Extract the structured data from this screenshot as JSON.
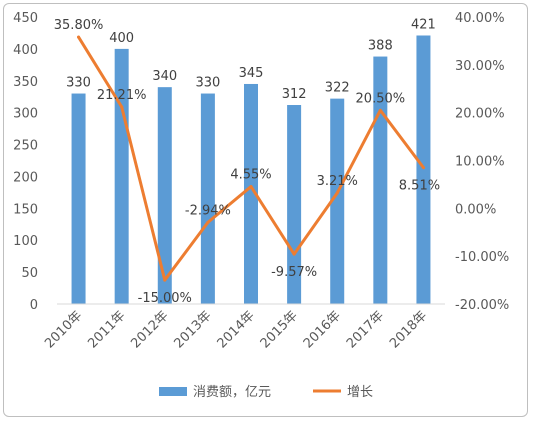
{
  "chart_data": {
    "type": "bar",
    "categories": [
      "2010年",
      "2011年",
      "2012年",
      "2013年",
      "2014年",
      "2015年",
      "2016年",
      "2017年",
      "2018年"
    ],
    "series": [
      {
        "name": "消费额，亿元",
        "kind": "bar",
        "axis": "left",
        "color": "#5b9bd5",
        "values": [
          330,
          400,
          340,
          330,
          345,
          312,
          322,
          388,
          421
        ],
        "labels": [
          "330",
          "400",
          "340",
          "330",
          "345",
          "312",
          "322",
          "388",
          "421"
        ]
      },
      {
        "name": "增长",
        "kind": "line",
        "axis": "right",
        "color": "#ed7d31",
        "values": [
          35.8,
          21.21,
          -15.0,
          -2.94,
          4.55,
          -9.57,
          3.21,
          20.5,
          8.51
        ],
        "labels": [
          "35.80%",
          "21.21%",
          "-15.00%",
          "-2.94%",
          "4.55%",
          "-9.57%",
          "3.21%",
          "20.50%",
          "8.51%"
        ]
      }
    ],
    "y_left": {
      "ylim": [
        0,
        450
      ],
      "ticks": [
        "0",
        "50",
        "100",
        "150",
        "200",
        "250",
        "300",
        "350",
        "400",
        "450"
      ]
    },
    "y_right": {
      "ylim": [
        -20,
        40
      ],
      "ticks": [
        "-20.00%",
        "-10.00%",
        "0.00%",
        "10.00%",
        "20.00%",
        "30.00%",
        "40.00%"
      ]
    },
    "grid": false,
    "legend_position": "bottom"
  }
}
